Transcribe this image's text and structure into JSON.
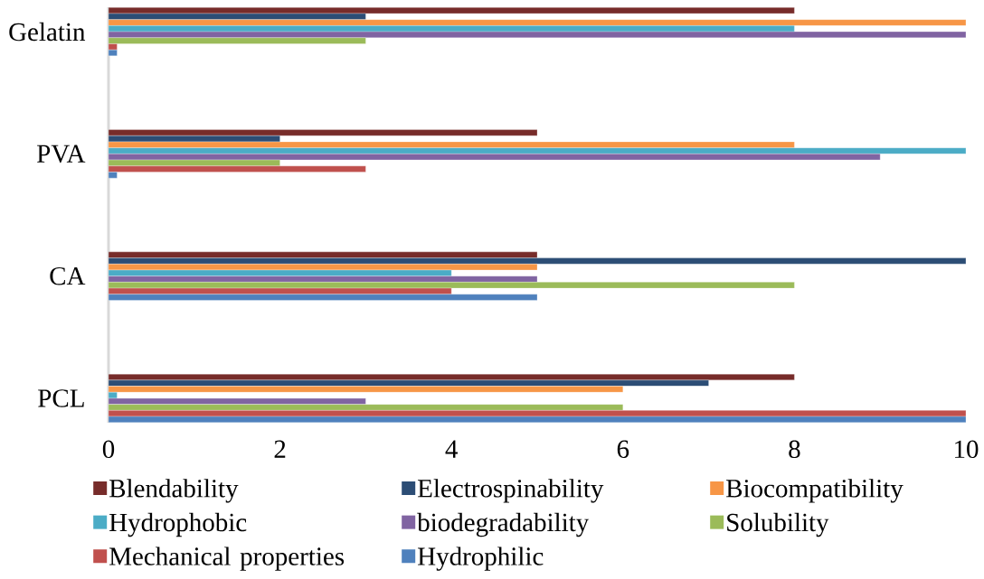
{
  "chart_data": {
    "type": "bar",
    "orientation": "horizontal",
    "categories": [
      "Gelatin",
      "PVA",
      "CA",
      "PCL"
    ],
    "series": [
      {
        "name": "Blendability",
        "color": "#772c2a",
        "values": [
          8,
          5,
          5,
          8
        ]
      },
      {
        "name": "Electrospinability",
        "color": "#2c4d75",
        "values": [
          3,
          2,
          10,
          7
        ]
      },
      {
        "name": "Biocompatibility",
        "color": "#f79646",
        "values": [
          10,
          8,
          5,
          6
        ]
      },
      {
        "name": "Hydrophobic",
        "color": "#4bacc6",
        "values": [
          8,
          10,
          4,
          0.1
        ]
      },
      {
        "name": "biodegradability",
        "color": "#8064a2",
        "values": [
          10,
          9,
          5,
          3
        ]
      },
      {
        "name": "Solubility",
        "color": "#9bbb59",
        "values": [
          3,
          2,
          8,
          6
        ]
      },
      {
        "name": "Mechanical properties",
        "color": "#c0504d",
        "values": [
          0.1,
          3,
          4,
          10
        ]
      },
      {
        "name": "Hydrophilic",
        "color": "#4f81bd",
        "values": [
          0.1,
          0.1,
          5,
          10
        ]
      }
    ],
    "xlim": [
      0,
      10
    ],
    "xticks": [
      0,
      2,
      4,
      6,
      8,
      10
    ],
    "legend": "bottom"
  }
}
